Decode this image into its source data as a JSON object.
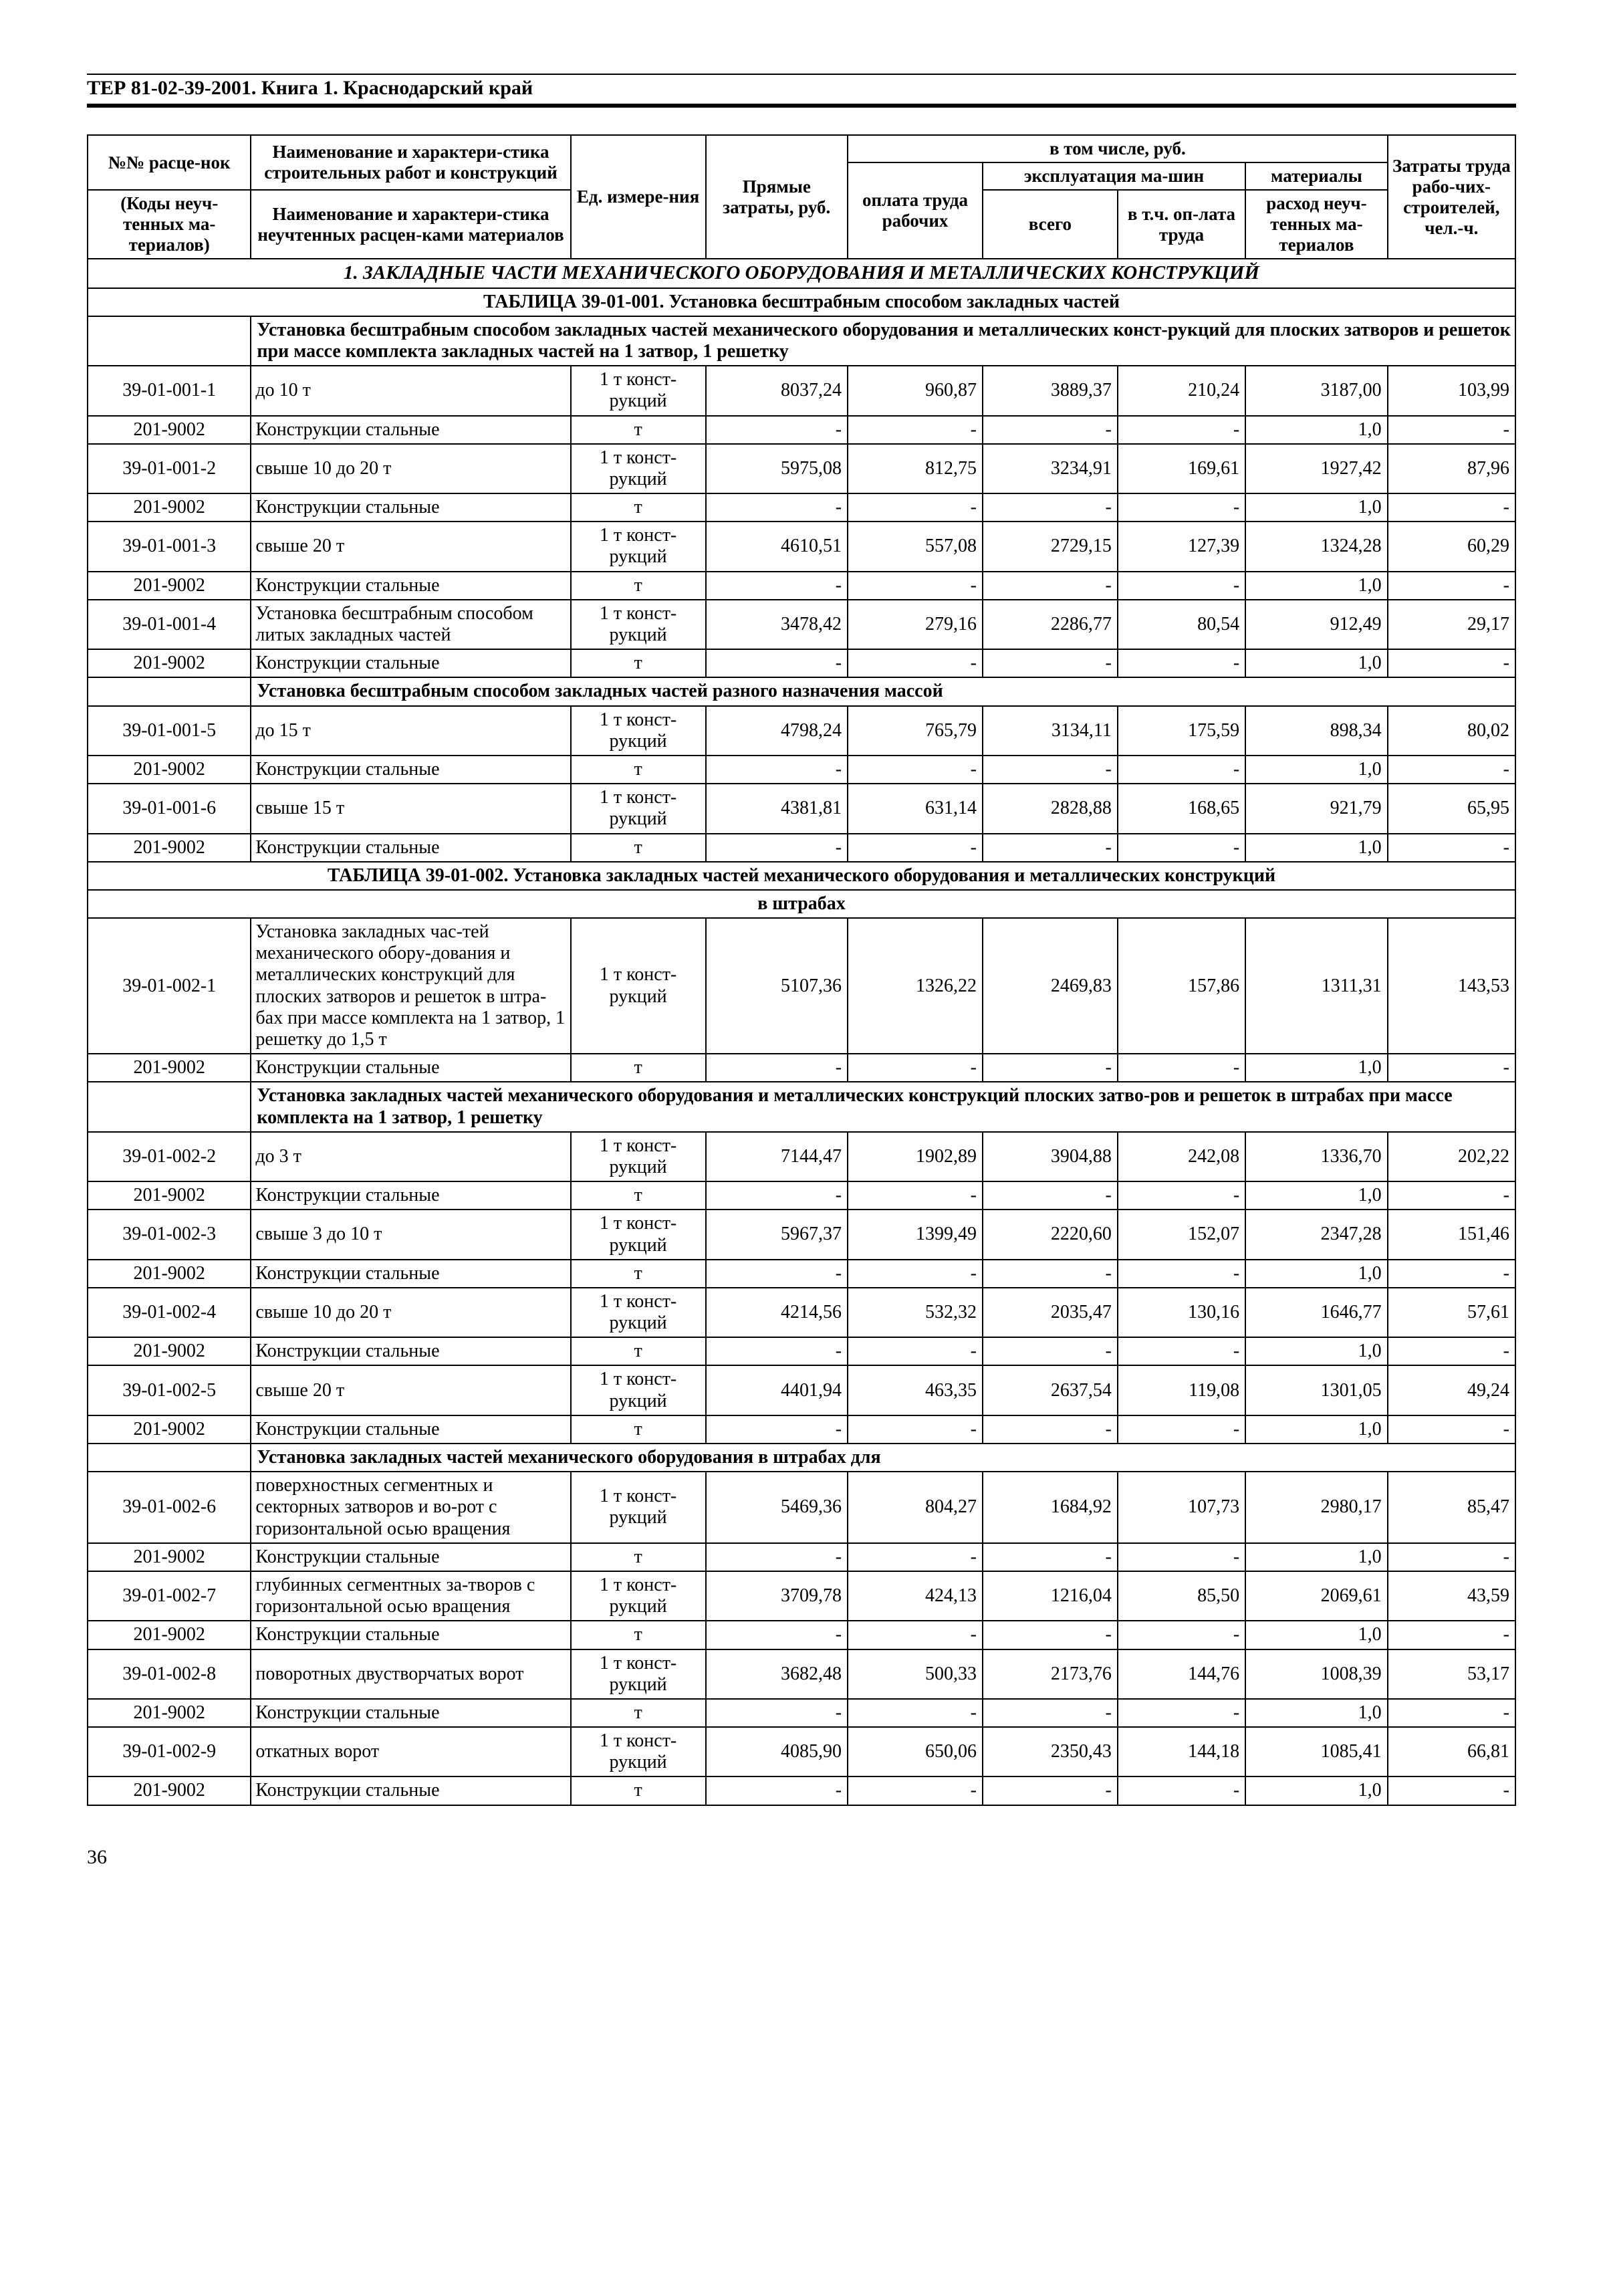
{
  "header_line": "ТЕР 81-02-39-2001. Книга 1.   Краснодарский край",
  "page_number": "36",
  "columns": {
    "code_top": "№№ расце-нок",
    "code_bot": "(Коды неуч-тенных ма-териалов)",
    "name_top": "Наименование и характери-стика строительных работ и конструкций",
    "name_bot": "Наименование и характери-стика неучтенных расцен-ками материалов",
    "unit": "Ед. измере-ния",
    "direct": "Прямые затраты, руб.",
    "incl": "в том числе, руб.",
    "labor_pay": "оплата труда рабочих",
    "mach": "эксплуатация ма-шин",
    "mach_total": "всего",
    "mach_wage": "в т.ч. оп-лата труда",
    "materials": "материалы",
    "materials_sub": "расход неуч-тенных ма-териалов",
    "labor": "Затраты труда рабо-чих-строителей, чел.-ч.",
    "section1": "1. ЗАКЛАДНЫЕ ЧАСТИ МЕХАНИЧЕСКОГО ОБОРУДОВАНИЯ И МЕТАЛЛИЧЕСКИХ КОНСТРУКЦИЙ",
    "table1_title": "ТАБЛИЦА  39-01-001.  Установка бесштрабным способом закладных частей",
    "table1_group1": "Установка бесштрабным способом закладных частей механического оборудования и металлических конст-рукций для плоских затворов и решеток при массе комплекта закладных частей на 1 затвор, 1 решетку",
    "table1_group2": "Установка бесштрабным способом закладных частей разного назначения массой",
    "table2_title_l1": "ТАБЛИЦА  39-01-002.  Установка закладных частей механического оборудования и металлических конструкций",
    "table2_title_l2": "в штрабах",
    "table2_group1": "Установка закладных частей механического оборудования и металлических конструкций плоских затво-ров и решеток в штрабах при массе комплекта на 1 затвор, 1 решетку",
    "table2_group2": "Установка закладных частей механического оборудования в штрабах для"
  },
  "unit_ton": "1 т конст-рукций",
  "unit_t": "т",
  "steel": "Конструкции стальные",
  "rows": [
    {
      "k": "d",
      "code": "39-01-001-1",
      "name": "до 10 т",
      "c1": "8037,24",
      "c2": "960,87",
      "c3": "3889,37",
      "c4": "210,24",
      "c5": "3187,00",
      "c6": "103,99"
    },
    {
      "k": "s",
      "code": "201-9002",
      "c5": "1,0"
    },
    {
      "k": "d",
      "code": "39-01-001-2",
      "name": "свыше 10 до 20 т",
      "c1": "5975,08",
      "c2": "812,75",
      "c3": "3234,91",
      "c4": "169,61",
      "c5": "1927,42",
      "c6": "87,96"
    },
    {
      "k": "s",
      "code": "201-9002",
      "c5": "1,0"
    },
    {
      "k": "d",
      "code": "39-01-001-3",
      "name": "свыше 20 т",
      "c1": "4610,51",
      "c2": "557,08",
      "c3": "2729,15",
      "c4": "127,39",
      "c5": "1324,28",
      "c6": "60,29"
    },
    {
      "k": "s",
      "code": "201-9002",
      "c5": "1,0"
    },
    {
      "k": "d",
      "code": "39-01-001-4",
      "name": "Установка бесштрабным способом литых закладных частей",
      "c1": "3478,42",
      "c2": "279,16",
      "c3": "2286,77",
      "c4": "80,54",
      "c5": "912,49",
      "c6": "29,17"
    },
    {
      "k": "s",
      "code": "201-9002",
      "c5": "1,0"
    },
    {
      "k": "g",
      "text": "table1_group2"
    },
    {
      "k": "d",
      "code": "39-01-001-5",
      "name": "до 15 т",
      "c1": "4798,24",
      "c2": "765,79",
      "c3": "3134,11",
      "c4": "175,59",
      "c5": "898,34",
      "c6": "80,02"
    },
    {
      "k": "s",
      "code": "201-9002",
      "c5": "1,0"
    },
    {
      "k": "d",
      "code": "39-01-001-6",
      "name": "свыше 15 т",
      "c1": "4381,81",
      "c2": "631,14",
      "c3": "2828,88",
      "c4": "168,65",
      "c5": "921,79",
      "c6": "65,95"
    },
    {
      "k": "s",
      "code": "201-9002",
      "c5": "1,0"
    },
    {
      "k": "t2"
    },
    {
      "k": "d",
      "code": "39-01-002-1",
      "name": "Установка закладных час-тей механического обору-дования и металлических конструкций для плоских затворов и решеток в штра-бах при массе комплекта на 1 затвор, 1 решетку до 1,5 т",
      "c1": "5107,36",
      "c2": "1326,22",
      "c3": "2469,83",
      "c4": "157,86",
      "c5": "1311,31",
      "c6": "143,53"
    },
    {
      "k": "s",
      "code": "201-9002",
      "c5": "1,0"
    },
    {
      "k": "g",
      "text": "table2_group1"
    },
    {
      "k": "d",
      "code": "39-01-002-2",
      "name": "до 3 т",
      "c1": "7144,47",
      "c2": "1902,89",
      "c3": "3904,88",
      "c4": "242,08",
      "c5": "1336,70",
      "c6": "202,22"
    },
    {
      "k": "s",
      "code": "201-9002",
      "c5": "1,0"
    },
    {
      "k": "d",
      "code": "39-01-002-3",
      "name": "свыше 3 до 10 т",
      "c1": "5967,37",
      "c2": "1399,49",
      "c3": "2220,60",
      "c4": "152,07",
      "c5": "2347,28",
      "c6": "151,46"
    },
    {
      "k": "s",
      "code": "201-9002",
      "c5": "1,0"
    },
    {
      "k": "d",
      "code": "39-01-002-4",
      "name": "свыше 10 до 20 т",
      "c1": "4214,56",
      "c2": "532,32",
      "c3": "2035,47",
      "c4": "130,16",
      "c5": "1646,77",
      "c6": "57,61"
    },
    {
      "k": "s",
      "code": "201-9002",
      "c5": "1,0"
    },
    {
      "k": "d",
      "code": "39-01-002-5",
      "name": "свыше 20 т",
      "c1": "4401,94",
      "c2": "463,35",
      "c3": "2637,54",
      "c4": "119,08",
      "c5": "1301,05",
      "c6": "49,24"
    },
    {
      "k": "s",
      "code": "201-9002",
      "c5": "1,0"
    },
    {
      "k": "g",
      "text": "table2_group2"
    },
    {
      "k": "d",
      "code": "39-01-002-6",
      "name": "поверхностных сегментных и секторных затворов и во-рот с горизонтальной осью вращения",
      "c1": "5469,36",
      "c2": "804,27",
      "c3": "1684,92",
      "c4": "107,73",
      "c5": "2980,17",
      "c6": "85,47"
    },
    {
      "k": "s",
      "code": "201-9002",
      "c5": "1,0"
    },
    {
      "k": "d",
      "code": "39-01-002-7",
      "name": "глубинных сегментных за-творов с горизонтальной осью вращения",
      "c1": "3709,78",
      "c2": "424,13",
      "c3": "1216,04",
      "c4": "85,50",
      "c5": "2069,61",
      "c6": "43,59"
    },
    {
      "k": "s",
      "code": "201-9002",
      "c5": "1,0"
    },
    {
      "k": "d",
      "code": "39-01-002-8",
      "name": "поворотных двустворчатых ворот",
      "c1": "3682,48",
      "c2": "500,33",
      "c3": "2173,76",
      "c4": "144,76",
      "c5": "1008,39",
      "c6": "53,17"
    },
    {
      "k": "s",
      "code": "201-9002",
      "c5": "1,0"
    },
    {
      "k": "d",
      "code": "39-01-002-9",
      "name": "откатных ворот",
      "c1": "4085,90",
      "c2": "650,06",
      "c3": "2350,43",
      "c4": "144,18",
      "c5": "1085,41",
      "c6": "66,81"
    },
    {
      "k": "s",
      "code": "201-9002",
      "c5": "1,0"
    }
  ],
  "layout": {
    "col_widths_pct": [
      11.5,
      22.5,
      9.5,
      10,
      9.5,
      9.5,
      9,
      10,
      9
    ]
  }
}
